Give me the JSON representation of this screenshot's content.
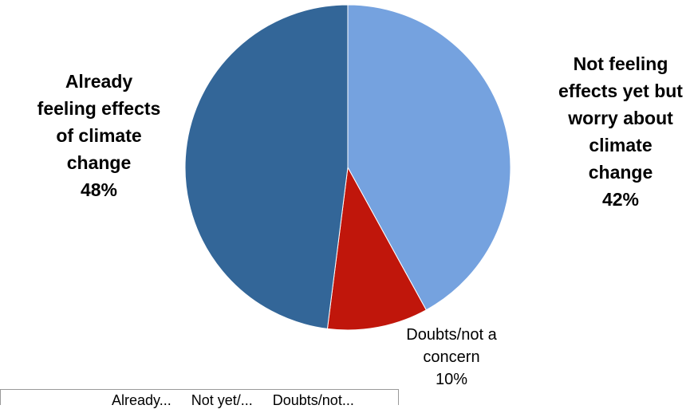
{
  "chart_data": {
    "type": "pie",
    "slices": [
      {
        "label": "Not feeling effects yet but worry about climate change",
        "value": 42,
        "color": "#75a2df"
      },
      {
        "label": "Doubts/not a concern",
        "value": 10,
        "color": "#c0160b"
      },
      {
        "label": "Already feeling effects of climate change",
        "value": 48,
        "color": "#336698"
      }
    ],
    "data_labels": [
      {
        "lines": [
          "Not feeling",
          "effects yet but",
          "worry about",
          "climate",
          "change",
          "42%"
        ]
      },
      {
        "lines": [
          "Doubts/not a",
          "concern",
          "10%"
        ]
      },
      {
        "lines": [
          "Already",
          "feeling effects",
          "of climate",
          "change",
          "48%"
        ]
      }
    ],
    "legend": {
      "placement": "bottom",
      "entries": [
        "Already...",
        "Not yet/...",
        "Doubts/not..."
      ]
    }
  }
}
